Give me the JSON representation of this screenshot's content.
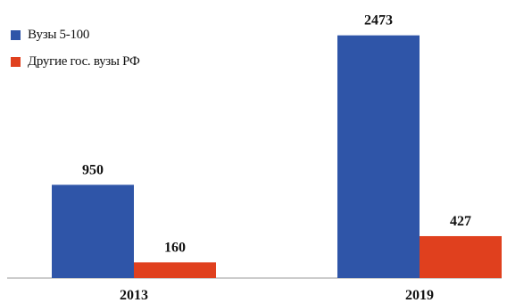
{
  "chart_data": {
    "type": "bar",
    "categories": [
      "2013",
      "2019"
    ],
    "series": [
      {
        "name": "Вузы 5-100",
        "values": [
          950,
          2473
        ],
        "color": "#2f55a8"
      },
      {
        "name": "Другие гос. вузы РФ",
        "values": [
          160,
          427
        ],
        "color": "#e0401e"
      }
    ],
    "data_labels": [
      [
        "950",
        "2473"
      ],
      [
        "160",
        "427"
      ]
    ],
    "title": "",
    "xlabel": "",
    "ylabel": "",
    "ylim": [
      0,
      2600
    ],
    "grid": false,
    "y_axis_visible": false,
    "legend_position": "top-left"
  }
}
